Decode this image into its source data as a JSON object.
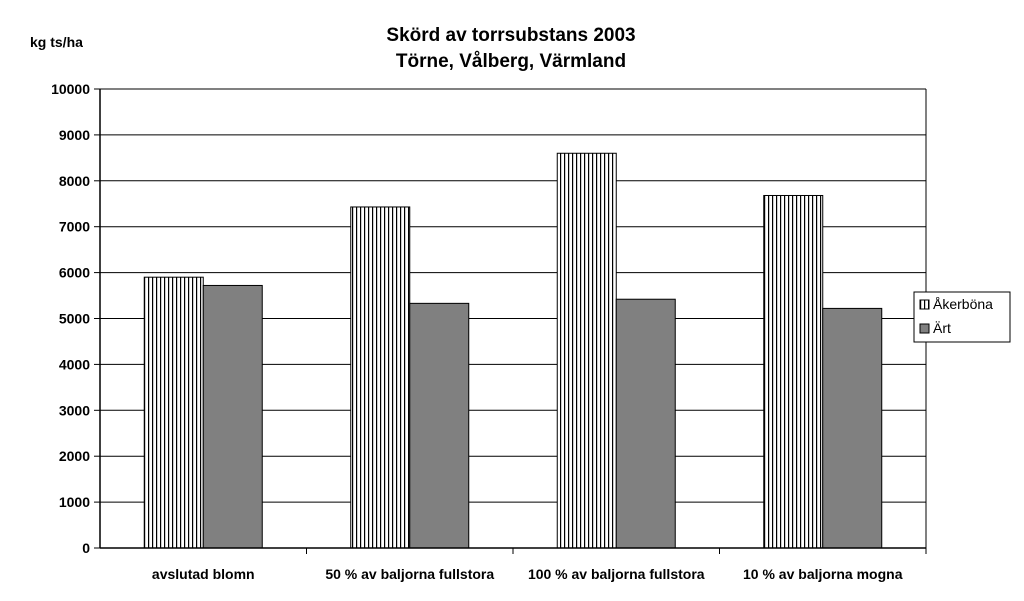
{
  "chart_data": {
    "type": "bar",
    "title": "Skörd av torrsubstans 2003",
    "subtitle": "Törne, Vålberg, Värmland",
    "ylabel": "kg ts/ha",
    "xlabel": "",
    "ylim": [
      0,
      10000
    ],
    "yticks": [
      0,
      1000,
      2000,
      3000,
      4000,
      5000,
      6000,
      7000,
      8000,
      9000,
      10000
    ],
    "grid": true,
    "legend_position": "right",
    "categories": [
      "avslutad blomn",
      "50 % av baljorna fullstora",
      "100 % av baljorna fullstora",
      "10 % av baljorna mogna"
    ],
    "series": [
      {
        "name": "Åkerböna",
        "values": [
          5900,
          7430,
          8600,
          7680
        ],
        "pattern": "vertical-stripes",
        "color": "#ffffff"
      },
      {
        "name": "Ärt",
        "values": [
          5720,
          5330,
          5420,
          5220
        ],
        "pattern": "solid",
        "color": "#808080"
      }
    ]
  }
}
